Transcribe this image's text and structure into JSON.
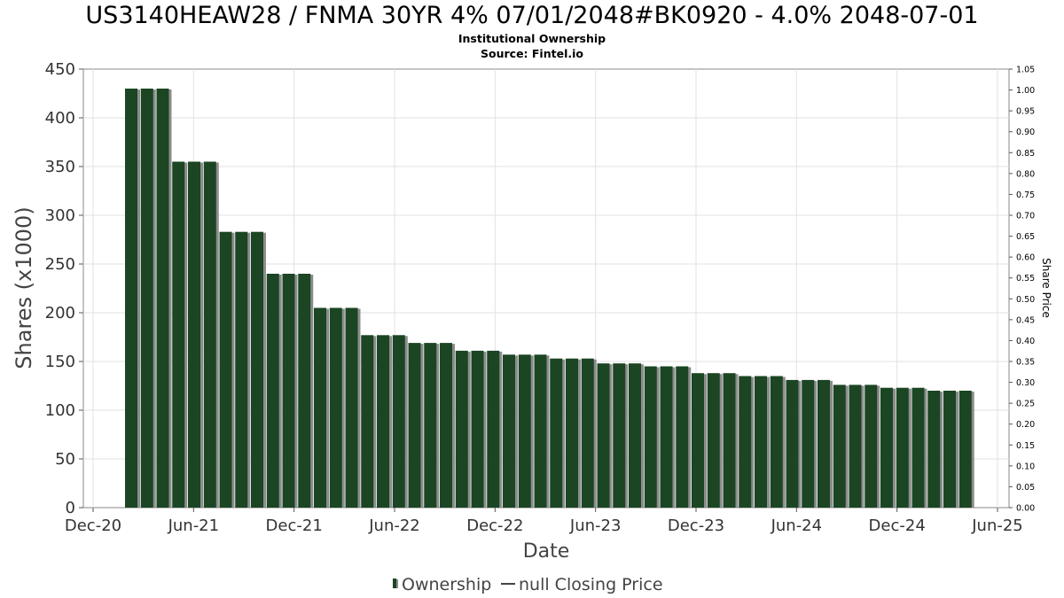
{
  "header": {
    "title": "US3140HEAW28 / FNMA 30YR 4% 07/01/2048#BK0920 - 4.0% 2048-07-01",
    "subtitle": "Institutional Ownership",
    "source": "Source: Fintel.io"
  },
  "chart_data": {
    "type": "bar",
    "xlabel": "Date",
    "ylabel": "Shares (x1000)",
    "y2label": "Share Price",
    "ylim": [
      0,
      450
    ],
    "y2lim": [
      0,
      1.05
    ],
    "y_ticks": [
      "0",
      "50",
      "100",
      "150",
      "200",
      "250",
      "300",
      "350",
      "400",
      "450"
    ],
    "y2_ticks": [
      "0.00",
      "0.05",
      "0.10",
      "0.15",
      "0.20",
      "0.25",
      "0.30",
      "0.35",
      "0.40",
      "0.45",
      "0.50",
      "0.55",
      "0.60",
      "0.65",
      "0.70",
      "0.75",
      "0.80",
      "0.85",
      "0.90",
      "0.95",
      "1.00",
      "1.05"
    ],
    "x_ticks": [
      "Dec-20",
      "Jun-21",
      "Dec-21",
      "Jun-22",
      "Dec-22",
      "Jun-23",
      "Dec-23",
      "Jun-24",
      "Dec-24",
      "Jun-25"
    ],
    "grid": true,
    "bar_color": "#1b4523",
    "shadow_color": "#8c8c8c",
    "series": [
      {
        "name": "Ownership",
        "values": [
          430,
          430,
          430,
          355,
          355,
          355,
          283,
          283,
          283,
          240,
          240,
          240,
          205,
          205,
          205,
          177,
          177,
          177,
          169,
          169,
          169,
          161,
          161,
          161,
          157,
          157,
          157,
          153,
          153,
          153,
          148,
          148,
          148,
          145,
          145,
          145,
          138,
          138,
          138,
          135,
          135,
          135,
          131,
          131,
          131,
          126,
          126,
          126,
          123,
          123,
          123,
          120,
          120,
          120
        ]
      }
    ],
    "legend": {
      "position": "bottom",
      "items": [
        "Ownership",
        "null Closing Price"
      ]
    }
  }
}
